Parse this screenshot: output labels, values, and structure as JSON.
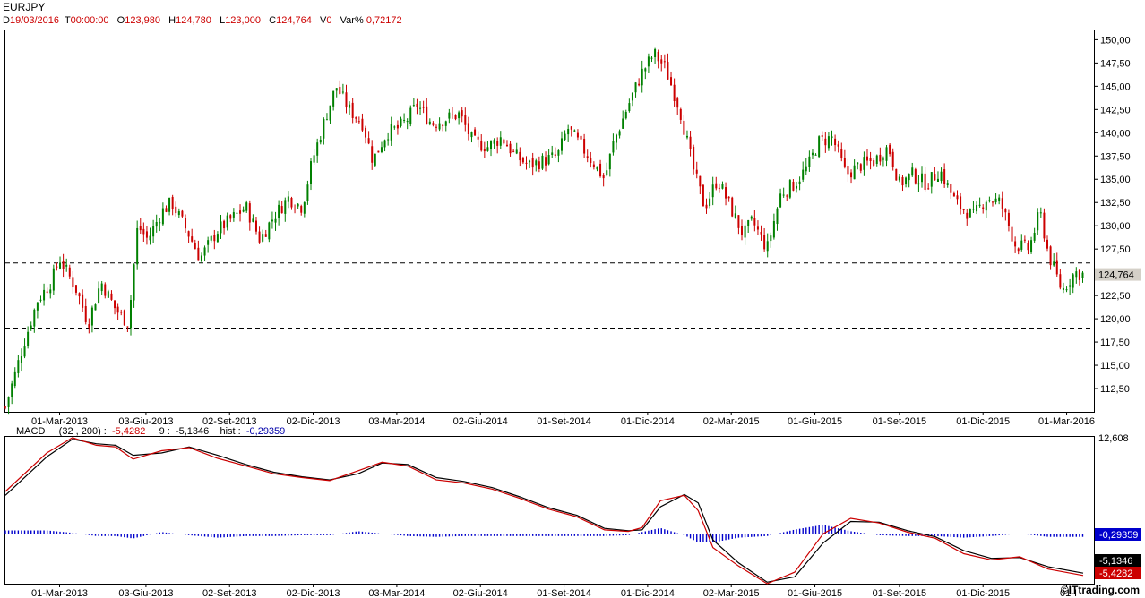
{
  "header": {
    "symbol": "EURJPY",
    "date_label": "D",
    "date_value": "19/03/2016",
    "time_label": "T",
    "time_value": "00:00:00",
    "open_label": "O",
    "open_value": "123,980",
    "high_label": "H",
    "high_value": "124,780",
    "low_label": "L",
    "low_value": "123,000",
    "close_label": "C",
    "close_value": "124,764",
    "vol_label": "V",
    "vol_value": "0",
    "var_label": "Var%",
    "var_value": "0,72172"
  },
  "macd_header": {
    "name": "MACD",
    "params": "(32 , 200) :",
    "macd_value": "-5,4282",
    "signal_label": "9 :",
    "signal_value": "-5,1346",
    "hist_label": "hist :",
    "hist_value": "-0,29359"
  },
  "watermark": "©ITtrading.com",
  "colors": {
    "up": "#008000",
    "down": "#cc0000",
    "macd_line": "#cc0000",
    "signal_line": "#000000",
    "hist": "#0000cc",
    "current_tag": "#d4d0c8"
  },
  "chart_data": [
    {
      "type": "candlestick",
      "title": "EURJPY",
      "ylim": [
        110.0,
        151.0
      ],
      "y_ticks": [
        "150,00",
        "147,50",
        "145,00",
        "142,50",
        "140,00",
        "137,50",
        "135,00",
        "132,50",
        "130,00",
        "127,50",
        "125,00",
        "122,50",
        "120,00",
        "117,50",
        "115,00",
        "112,50"
      ],
      "x_ticks": [
        "01-Mar-2013",
        "03-Giu-2013",
        "02-Set-2013",
        "02-Dic-2013",
        "03-Mar-2014",
        "02-Giu-2014",
        "01-Set-2014",
        "01-Dic-2014",
        "02-Mar-2015",
        "01-Giu-2015",
        "01-Set-2015",
        "01-Dic-2015",
        "01-Mar-2016"
      ],
      "x_range": [
        "2013-01-01",
        "2016-03-19"
      ],
      "current_value": "124,764",
      "support_levels": [
        126.0,
        119.0
      ],
      "close_path": [
        [
          "2013-01-01",
          110.5
        ],
        [
          "2013-01-20",
          117.0
        ],
        [
          "2013-02-05",
          122.0
        ],
        [
          "2013-02-20",
          124.0
        ],
        [
          "2013-03-01",
          126.5
        ],
        [
          "2013-03-20",
          123.0
        ],
        [
          "2013-04-01",
          119.5
        ],
        [
          "2013-04-15",
          124.0
        ],
        [
          "2013-05-01",
          121.0
        ],
        [
          "2013-05-15",
          119.5
        ],
        [
          "2013-05-25",
          130.0
        ],
        [
          "2013-06-05",
          128.5
        ],
        [
          "2013-06-20",
          131.5
        ],
        [
          "2013-07-01",
          132.5
        ],
        [
          "2013-07-20",
          129.0
        ],
        [
          "2013-08-01",
          126.5
        ],
        [
          "2013-08-20",
          129.5
        ],
        [
          "2013-09-01",
          130.5
        ],
        [
          "2013-09-20",
          132.0
        ],
        [
          "2013-10-05",
          128.5
        ],
        [
          "2013-10-20",
          131.0
        ],
        [
          "2013-11-05",
          133.0
        ],
        [
          "2013-11-20",
          132.0
        ],
        [
          "2013-12-01",
          137.0
        ],
        [
          "2013-12-15",
          141.5
        ],
        [
          "2013-12-27",
          145.0
        ],
        [
          "2014-01-10",
          142.5
        ],
        [
          "2014-01-25",
          141.0
        ],
        [
          "2014-02-05",
          137.0
        ],
        [
          "2014-02-20",
          140.0
        ],
        [
          "2014-03-05",
          140.5
        ],
        [
          "2014-03-15",
          141.5
        ],
        [
          "2014-03-25",
          143.0
        ],
        [
          "2014-04-10",
          141.0
        ],
        [
          "2014-04-25",
          141.5
        ],
        [
          "2014-05-10",
          142.0
        ],
        [
          "2014-05-25",
          139.0
        ],
        [
          "2014-06-10",
          138.5
        ],
        [
          "2014-06-25",
          139.5
        ],
        [
          "2014-07-10",
          137.5
        ],
        [
          "2014-07-25",
          136.5
        ],
        [
          "2014-08-10",
          137.0
        ],
        [
          "2014-08-25",
          137.5
        ],
        [
          "2014-09-05",
          140.5
        ],
        [
          "2014-09-20",
          138.5
        ],
        [
          "2014-10-05",
          136.5
        ],
        [
          "2014-10-15",
          135.0
        ],
        [
          "2014-10-25",
          139.0
        ],
        [
          "2014-11-10",
          143.0
        ],
        [
          "2014-11-25",
          146.5
        ],
        [
          "2014-12-08",
          148.5
        ],
        [
          "2014-12-20",
          147.0
        ],
        [
          "2015-01-05",
          142.5
        ],
        [
          "2015-01-20",
          136.0
        ],
        [
          "2015-02-01",
          132.0
        ],
        [
          "2015-02-15",
          135.0
        ],
        [
          "2015-03-01",
          132.0
        ],
        [
          "2015-03-15",
          129.0
        ],
        [
          "2015-03-25",
          130.5
        ],
        [
          "2015-04-10",
          127.5
        ],
        [
          "2015-04-25",
          133.5
        ],
        [
          "2015-05-10",
          134.5
        ],
        [
          "2015-05-25",
          136.5
        ],
        [
          "2015-06-05",
          139.0
        ],
        [
          "2015-06-20",
          139.5
        ],
        [
          "2015-07-05",
          135.5
        ],
        [
          "2015-07-20",
          136.5
        ],
        [
          "2015-08-05",
          137.0
        ],
        [
          "2015-08-20",
          138.5
        ],
        [
          "2015-09-01",
          134.5
        ],
        [
          "2015-09-15",
          135.5
        ],
        [
          "2015-10-01",
          134.5
        ],
        [
          "2015-10-15",
          136.0
        ],
        [
          "2015-11-01",
          132.5
        ],
        [
          "2015-11-20",
          131.0
        ],
        [
          "2015-12-05",
          133.0
        ],
        [
          "2015-12-20",
          132.5
        ],
        [
          "2016-01-05",
          128.0
        ],
        [
          "2016-01-20",
          127.5
        ],
        [
          "2016-02-01",
          131.5
        ],
        [
          "2016-02-10",
          127.0
        ],
        [
          "2016-02-25",
          123.0
        ],
        [
          "2016-03-10",
          125.0
        ],
        [
          "2016-03-19",
          124.764
        ]
      ]
    },
    {
      "type": "line",
      "title": "MACD",
      "params": [
        32,
        200,
        9
      ],
      "ylim": [
        -6.5,
        12.6
      ],
      "y_ticks": [
        "12,608"
      ],
      "x_ticks": [
        "01-Mar-2013",
        "03-Giu-2013",
        "02-Set-2013",
        "02-Dic-2013",
        "03-Mar-2014",
        "02-Giu-2014",
        "01-Set-2014",
        "01-Dic-2014",
        "02-Mar-2015",
        "01-Giu-2015",
        "01-Set-2015",
        "01-Dic-2015",
        "01-I"
      ],
      "current_values": {
        "hist": "-0,29359",
        "signal": "-5,1346",
        "macd": "-5,4282"
      },
      "series": [
        {
          "name": "MACD",
          "points": [
            [
              "2013-01-01",
              5.5
            ],
            [
              "2013-02-15",
              10.5
            ],
            [
              "2013-03-15",
              12.5
            ],
            [
              "2013-04-10",
              11.5
            ],
            [
              "2013-05-01",
              11.3
            ],
            [
              "2013-05-20",
              9.7
            ],
            [
              "2013-06-20",
              10.8
            ],
            [
              "2013-07-20",
              11.2
            ],
            [
              "2013-08-20",
              9.8
            ],
            [
              "2013-09-20",
              8.8
            ],
            [
              "2013-10-20",
              7.8
            ],
            [
              "2013-11-20",
              7.3
            ],
            [
              "2013-12-20",
              6.9
            ],
            [
              "2014-01-20",
              8.2
            ],
            [
              "2014-02-15",
              9.3
            ],
            [
              "2014-03-15",
              8.8
            ],
            [
              "2014-04-15",
              7.0
            ],
            [
              "2014-05-15",
              6.6
            ],
            [
              "2014-06-15",
              5.8
            ],
            [
              "2014-07-15",
              4.6
            ],
            [
              "2014-08-15",
              3.2
            ],
            [
              "2014-09-15",
              2.2
            ],
            [
              "2014-10-15",
              0.5
            ],
            [
              "2014-11-10",
              0.3
            ],
            [
              "2014-11-25",
              0.8
            ],
            [
              "2014-12-15",
              4.3
            ],
            [
              "2015-01-10",
              5.0
            ],
            [
              "2015-01-25",
              3.0
            ],
            [
              "2015-02-10",
              -1.8
            ],
            [
              "2015-03-10",
              -4.2
            ],
            [
              "2015-04-10",
              -6.5
            ],
            [
              "2015-05-10",
              -5.0
            ],
            [
              "2015-06-10",
              0.0
            ],
            [
              "2015-07-10",
              2.0
            ],
            [
              "2015-08-10",
              1.4
            ],
            [
              "2015-09-10",
              0.2
            ],
            [
              "2015-10-10",
              -0.6
            ],
            [
              "2015-11-10",
              -2.6
            ],
            [
              "2015-12-10",
              -3.4
            ],
            [
              "2016-01-10",
              -3.0
            ],
            [
              "2016-02-10",
              -4.6
            ],
            [
              "2016-03-19",
              -5.43
            ]
          ]
        },
        {
          "name": "9",
          "points": [
            [
              "2013-01-01",
              5.0
            ],
            [
              "2013-02-15",
              10.0
            ],
            [
              "2013-03-15",
              12.3
            ],
            [
              "2013-04-10",
              11.7
            ],
            [
              "2013-05-01",
              11.5
            ],
            [
              "2013-05-20",
              10.2
            ],
            [
              "2013-06-20",
              10.5
            ],
            [
              "2013-07-20",
              11.3
            ],
            [
              "2013-08-20",
              10.2
            ],
            [
              "2013-09-20",
              9.0
            ],
            [
              "2013-10-20",
              8.0
            ],
            [
              "2013-11-20",
              7.4
            ],
            [
              "2013-12-20",
              7.0
            ],
            [
              "2014-01-20",
              7.8
            ],
            [
              "2014-02-15",
              9.2
            ],
            [
              "2014-03-15",
              9.0
            ],
            [
              "2014-04-15",
              7.3
            ],
            [
              "2014-05-15",
              6.8
            ],
            [
              "2014-06-15",
              6.0
            ],
            [
              "2014-07-15",
              4.8
            ],
            [
              "2014-08-15",
              3.4
            ],
            [
              "2014-09-15",
              2.4
            ],
            [
              "2014-10-15",
              0.7
            ],
            [
              "2014-11-10",
              0.4
            ],
            [
              "2014-11-25",
              0.5
            ],
            [
              "2014-12-15",
              3.5
            ],
            [
              "2015-01-10",
              5.1
            ],
            [
              "2015-01-25",
              4.0
            ],
            [
              "2015-02-10",
              -0.8
            ],
            [
              "2015-03-10",
              -3.8
            ],
            [
              "2015-04-10",
              -6.3
            ],
            [
              "2015-05-10",
              -5.6
            ],
            [
              "2015-06-10",
              -1.2
            ],
            [
              "2015-07-10",
              1.6
            ],
            [
              "2015-08-10",
              1.5
            ],
            [
              "2015-09-10",
              0.4
            ],
            [
              "2015-10-10",
              -0.4
            ],
            [
              "2015-11-10",
              -2.2
            ],
            [
              "2015-12-10",
              -3.2
            ],
            [
              "2016-01-10",
              -3.1
            ],
            [
              "2016-02-10",
              -4.3
            ],
            [
              "2016-03-19",
              -5.13
            ]
          ]
        }
      ]
    }
  ]
}
